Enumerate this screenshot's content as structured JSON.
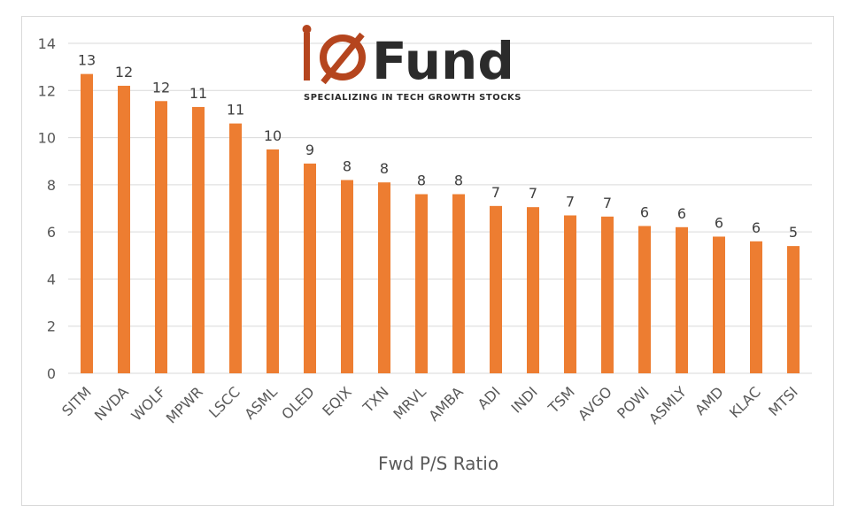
{
  "logo": {
    "mark": "io",
    "word": "Fund",
    "tagline": "SPECIALIZING IN TECH GROWTH STOCKS",
    "accent_color": "#b5451e",
    "text_color": "#2b2b2b"
  },
  "chart_data": {
    "type": "bar",
    "title": "",
    "xlabel": "Fwd P/S Ratio",
    "ylabel": "",
    "ylim": [
      0,
      14
    ],
    "yticks": [
      0,
      2,
      4,
      6,
      8,
      10,
      12,
      14
    ],
    "grid": true,
    "legend": "none",
    "bar_color": "#ed7d31",
    "categories": [
      "SITM",
      "NVDA",
      "WOLF",
      "MPWR",
      "LSCC",
      "ASML",
      "OLED",
      "EQIX",
      "TXN",
      "MRVL",
      "AMBA",
      "ADI",
      "INDI",
      "TSM",
      "AVGO",
      "POWI",
      "ASMLY",
      "AMD",
      "KLAC",
      "MTSI"
    ],
    "values": [
      12.7,
      12.2,
      11.55,
      11.3,
      10.6,
      9.5,
      8.9,
      8.2,
      8.1,
      7.6,
      7.6,
      7.1,
      7.05,
      6.7,
      6.65,
      6.25,
      6.2,
      5.8,
      5.6,
      5.4
    ],
    "data_labels": [
      "13",
      "12",
      "12",
      "11",
      "11",
      "10",
      "9",
      "8",
      "8",
      "8",
      "8",
      "7",
      "7",
      "7",
      "7",
      "6",
      "6",
      "6",
      "6",
      "5"
    ]
  }
}
